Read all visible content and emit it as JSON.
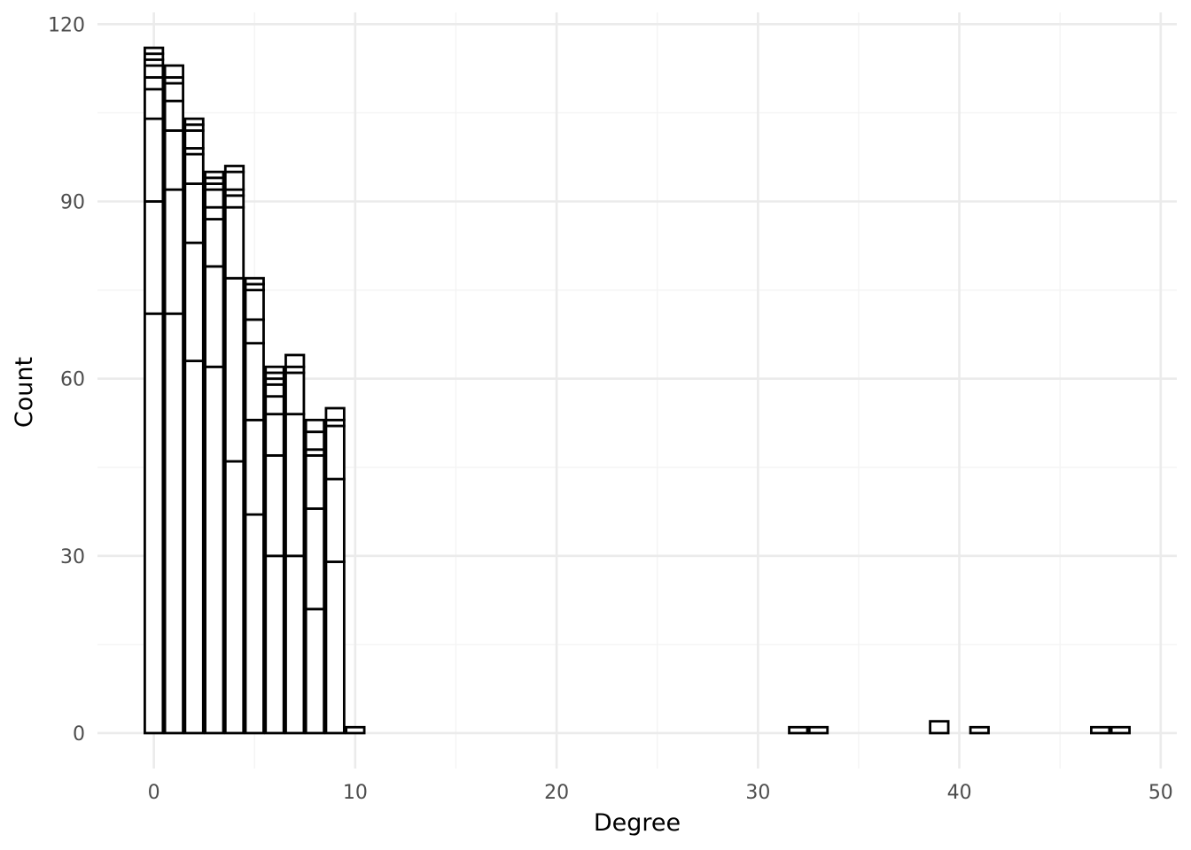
{
  "chart_data": {
    "type": "bar",
    "subtype": "stacked-histogram",
    "xlabel": "Degree",
    "ylabel": "Count",
    "xlim": [
      -2.8,
      50.8
    ],
    "ylim": [
      -6,
      122
    ],
    "x_ticks": [
      {
        "value": 0,
        "label": "0"
      },
      {
        "value": 10,
        "label": "10"
      },
      {
        "value": 20,
        "label": "20"
      },
      {
        "value": 30,
        "label": "30"
      },
      {
        "value": 40,
        "label": "40"
      },
      {
        "value": 50,
        "label": "50"
      }
    ],
    "x_minor_ticks": [
      5,
      15,
      25,
      35,
      45
    ],
    "y_ticks": [
      {
        "value": 0,
        "label": "0"
      },
      {
        "value": 30,
        "label": "30"
      },
      {
        "value": 60,
        "label": "60"
      },
      {
        "value": 90,
        "label": "90"
      },
      {
        "value": 120,
        "label": "120"
      }
    ],
    "y_minor_ticks": [
      15,
      45,
      75,
      105
    ],
    "grid": true,
    "legend": "none",
    "bar_fill": "#ffffff",
    "bar_stroke": "#000000",
    "bins": [
      {
        "x": 0,
        "stack": [
          0,
          71,
          90,
          104,
          109,
          111,
          113,
          114,
          115,
          116
        ]
      },
      {
        "x": 1,
        "stack": [
          0,
          71,
          92,
          102,
          107,
          110,
          111,
          113
        ]
      },
      {
        "x": 2,
        "stack": [
          0,
          63,
          83,
          93,
          98,
          99,
          102,
          103,
          104
        ]
      },
      {
        "x": 3,
        "stack": [
          0,
          62,
          79,
          87,
          89,
          92,
          93,
          94,
          95
        ]
      },
      {
        "x": 4,
        "stack": [
          0,
          46,
          77,
          89,
          91,
          92,
          95,
          96
        ]
      },
      {
        "x": 5,
        "stack": [
          0,
          37,
          53,
          66,
          70,
          75,
          76,
          77
        ]
      },
      {
        "x": 6,
        "stack": [
          0,
          30,
          47,
          54,
          57,
          59,
          60,
          61,
          62
        ]
      },
      {
        "x": 7,
        "stack": [
          0,
          30,
          54,
          61,
          62,
          64
        ]
      },
      {
        "x": 8,
        "stack": [
          0,
          21,
          38,
          47,
          48,
          51,
          53
        ]
      },
      {
        "x": 9,
        "stack": [
          0,
          29,
          43,
          52,
          53,
          55
        ]
      },
      {
        "x": 10,
        "stack": [
          0,
          1
        ]
      },
      {
        "x": 32,
        "stack": [
          0,
          1
        ]
      },
      {
        "x": 33,
        "stack": [
          0,
          1
        ]
      },
      {
        "x": 39,
        "stack": [
          0,
          2
        ]
      },
      {
        "x": 41,
        "stack": [
          0,
          1
        ]
      },
      {
        "x": 47,
        "stack": [
          0,
          1
        ]
      },
      {
        "x": 48,
        "stack": [
          0,
          1
        ]
      }
    ]
  }
}
